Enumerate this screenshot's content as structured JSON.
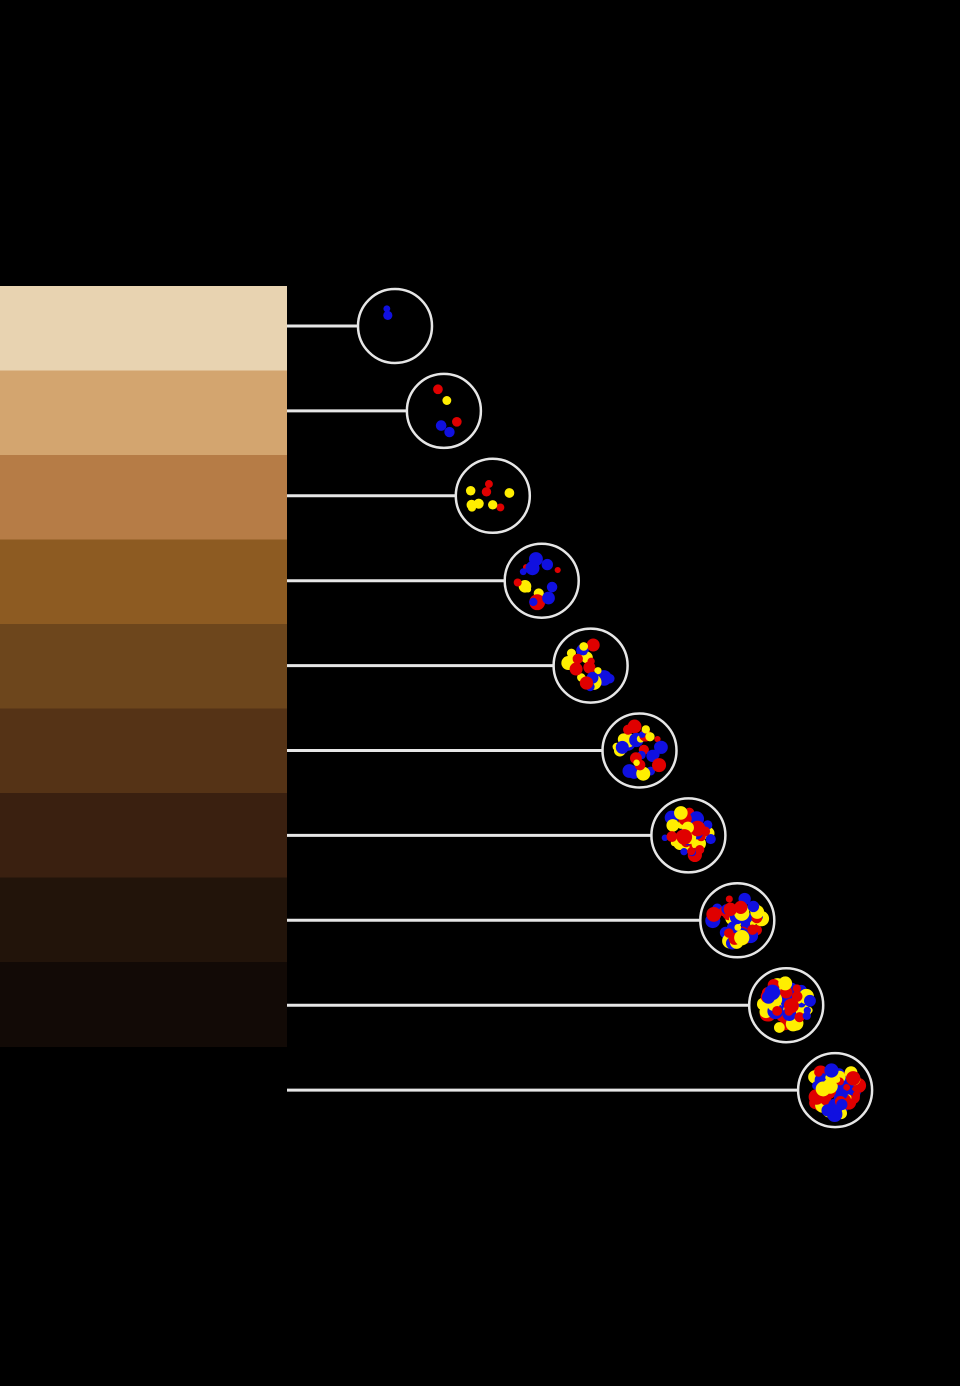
{
  "swatches": [
    {
      "color": "#e8d3b1"
    },
    {
      "color": "#d3a56f"
    },
    {
      "color": "#b67c46"
    },
    {
      "color": "#8d5b22"
    },
    {
      "color": "#6d461c"
    },
    {
      "color": "#553316"
    },
    {
      "color": "#3a2010"
    },
    {
      "color": "#22140a"
    },
    {
      "color": "#120a06"
    }
  ]
}
